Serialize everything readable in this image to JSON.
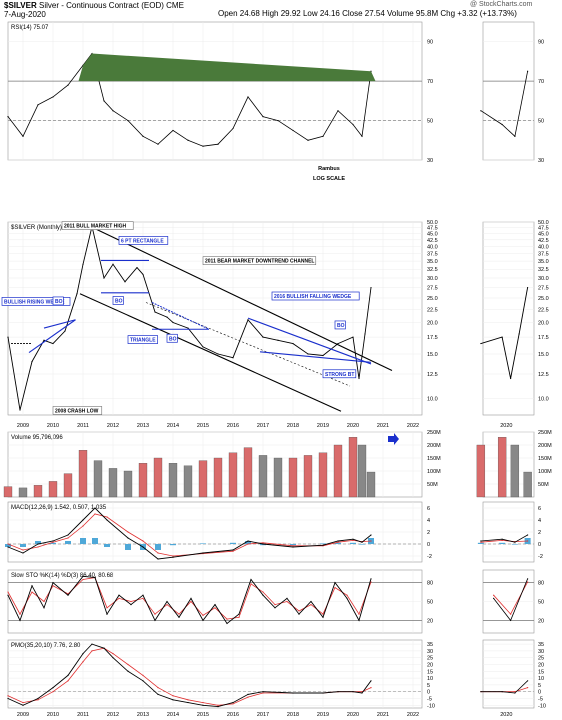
{
  "header": {
    "symbol": "$SILVER",
    "name": "Silver - Continuous Contract (EOD) CME",
    "date": "7-Aug-2020",
    "quote_line": "Open 24.68  High 29.92  Low 24.16  Close 27.54  Volume 95.8M  Chg +3.32 (+13.73%)",
    "watermark": "@ StockCharts.com"
  },
  "chart_data": [
    {
      "type": "line",
      "panel": "rsi",
      "label": "RSI(14) 75.07",
      "yticks": [
        30,
        50,
        70,
        90
      ],
      "ylim": [
        30,
        100
      ],
      "reference_lines": [
        70,
        50
      ],
      "x": [
        2008.5,
        2009.0,
        2009.5,
        2010.0,
        2010.5,
        2011.0,
        2011.3,
        2011.7,
        2012.0,
        2012.5,
        2013.0,
        2013.5,
        2014.0,
        2014.5,
        2015.0,
        2015.5,
        2016.0,
        2016.5,
        2017.0,
        2017.5,
        2018.0,
        2018.5,
        2019.0,
        2019.5,
        2020.0,
        2020.3,
        2020.6
      ],
      "values": [
        52,
        42,
        58,
        62,
        68,
        78,
        84,
        60,
        55,
        50,
        42,
        38,
        45,
        40,
        37,
        38,
        46,
        62,
        52,
        50,
        45,
        40,
        42,
        55,
        48,
        42,
        75
      ]
    },
    {
      "type": "line",
      "panel": "price",
      "label": "$SILVER (Monthly) 27.54",
      "scale": "log",
      "yticks": [
        10.0,
        12.5,
        15.0,
        17.5,
        20.0,
        22.5,
        25.0,
        27.5,
        30.0,
        32.5,
        35.0,
        37.5,
        40.0,
        42.5,
        45.0,
        47.5,
        50.0
      ],
      "ylim": [
        8.6,
        50
      ],
      "x": [
        2008.5,
        2008.9,
        2009.3,
        2009.7,
        2010.0,
        2010.4,
        2010.8,
        2011.0,
        2011.3,
        2011.7,
        2012.0,
        2012.4,
        2012.8,
        2013.0,
        2013.4,
        2013.8,
        2014.0,
        2014.5,
        2015.0,
        2015.5,
        2016.0,
        2016.5,
        2017.0,
        2017.5,
        2018.0,
        2018.5,
        2019.0,
        2019.5,
        2020.0,
        2020.2,
        2020.4,
        2020.6
      ],
      "values": [
        17.5,
        9.0,
        14.0,
        17.0,
        16.5,
        18.5,
        26.0,
        34.0,
        48.0,
        30.0,
        34.0,
        29.0,
        33.0,
        31.0,
        22.0,
        21.0,
        20.0,
        19.0,
        16.0,
        15.0,
        14.5,
        20.5,
        17.5,
        17.0,
        16.5,
        15.0,
        14.8,
        16.5,
        17.5,
        12.0,
        18.0,
        27.5
      ],
      "annotations": [
        "2011 BULL MARKET HIGH",
        "6 PT RECTANGLE",
        "2011 BEAR MARKET DOWNTREND CHANNEL",
        "BULLISH RISING WEDGE",
        "BO",
        "BO",
        "BO",
        "BO",
        "TRIANGLE",
        "2016 BULLISH FALLING WEDGE",
        "STRONG BT",
        "2008 CRASH LOW",
        "Rambus",
        "LOG SCALE"
      ]
    },
    {
      "type": "bar",
      "panel": "volume",
      "label": "Volume 95,796,096",
      "yticks": [
        "50M",
        "100M",
        "150M",
        "200M",
        "250M"
      ],
      "ylim": [
        0,
        250
      ],
      "x": [
        2008.5,
        2009.0,
        2009.5,
        2010.0,
        2010.5,
        2011.0,
        2011.5,
        2012.0,
        2012.5,
        2013.0,
        2013.5,
        2014.0,
        2014.5,
        2015.0,
        2015.5,
        2016.0,
        2016.5,
        2017.0,
        2017.5,
        2018.0,
        2018.5,
        2019.0,
        2019.5,
        2020.0,
        2020.3,
        2020.6
      ],
      "values": [
        40,
        35,
        45,
        60,
        90,
        180,
        140,
        110,
        100,
        130,
        150,
        130,
        120,
        140,
        150,
        170,
        190,
        160,
        150,
        150,
        160,
        170,
        200,
        230,
        200,
        96
      ]
    },
    {
      "type": "line",
      "panel": "macd",
      "label": "MACD(12,26,9) 1.542, 0.507, 1.035",
      "yticks": [
        -2,
        0,
        2,
        4,
        6
      ],
      "ylim": [
        -3,
        7
      ],
      "series": [
        {
          "name": "MACD",
          "x": [
            2008.5,
            2009.0,
            2009.5,
            2010.0,
            2010.5,
            2011.0,
            2011.4,
            2011.8,
            2012.5,
            2013.0,
            2013.5,
            2014.0,
            2015.0,
            2016.0,
            2016.5,
            2017.0,
            2018.0,
            2019.0,
            2019.5,
            2020.0,
            2020.3,
            2020.6
          ],
          "values": [
            -0.5,
            -1.5,
            0.0,
            0.5,
            1.5,
            4.0,
            6.0,
            4.0,
            1.0,
            -0.5,
            -2.5,
            -2.2,
            -1.5,
            -1.0,
            0.5,
            0.0,
            -0.5,
            -0.2,
            0.5,
            0.8,
            0.3,
            1.5
          ]
        },
        {
          "name": "Signal",
          "x": [
            2008.5,
            2009.0,
            2009.5,
            2010.0,
            2010.5,
            2011.0,
            2011.4,
            2011.8,
            2012.5,
            2013.0,
            2013.5,
            2014.0,
            2015.0,
            2016.0,
            2016.5,
            2017.0,
            2018.0,
            2019.0,
            2019.5,
            2020.0,
            2020.3,
            2020.6
          ],
          "values": [
            0.0,
            -1.0,
            -0.5,
            0.3,
            1.0,
            3.0,
            5.0,
            4.5,
            2.0,
            0.5,
            -1.5,
            -2.0,
            -1.6,
            -1.2,
            0.0,
            0.2,
            -0.3,
            -0.3,
            0.3,
            0.6,
            0.4,
            0.5
          ]
        }
      ]
    },
    {
      "type": "line",
      "panel": "sto",
      "label": "Slow STO %K(14) %D(3) 86.40, 80.68",
      "yticks": [
        20,
        50,
        80
      ],
      "ylim": [
        0,
        100
      ],
      "series": [
        {
          "name": "%K",
          "x": [
            2008.5,
            2008.9,
            2009.3,
            2009.7,
            2010.0,
            2010.5,
            2011.0,
            2011.4,
            2011.8,
            2012.2,
            2012.6,
            2013.0,
            2013.4,
            2013.8,
            2014.2,
            2014.6,
            2015.0,
            2015.4,
            2015.8,
            2016.2,
            2016.6,
            2017.0,
            2017.4,
            2017.8,
            2018.2,
            2018.6,
            2019.0,
            2019.4,
            2019.8,
            2020.2,
            2020.6
          ],
          "values": [
            60,
            20,
            75,
            40,
            80,
            60,
            90,
            88,
            30,
            60,
            45,
            60,
            20,
            50,
            25,
            55,
            20,
            45,
            15,
            30,
            85,
            60,
            40,
            55,
            30,
            50,
            25,
            80,
            55,
            20,
            86
          ]
        },
        {
          "name": "%D",
          "x": [
            2008.5,
            2008.9,
            2009.3,
            2009.7,
            2010.0,
            2010.5,
            2011.0,
            2011.4,
            2011.8,
            2012.2,
            2012.6,
            2013.0,
            2013.4,
            2013.8,
            2014.2,
            2014.6,
            2015.0,
            2015.4,
            2015.8,
            2016.2,
            2016.6,
            2017.0,
            2017.4,
            2017.8,
            2018.2,
            2018.6,
            2019.0,
            2019.4,
            2019.8,
            2020.2,
            2020.6
          ],
          "values": [
            65,
            30,
            65,
            50,
            75,
            62,
            85,
            88,
            40,
            55,
            50,
            55,
            30,
            45,
            30,
            50,
            28,
            40,
            22,
            25,
            78,
            65,
            45,
            50,
            35,
            45,
            30,
            72,
            60,
            30,
            81
          ]
        }
      ]
    },
    {
      "type": "line",
      "panel": "pmo",
      "label": "PMO(35,20,10) 7.76, 2.80",
      "yticks": [
        -10,
        -5,
        0,
        5,
        10,
        15,
        20,
        25,
        30,
        35
      ],
      "ylim": [
        -12,
        38
      ],
      "series": [
        {
          "name": "PMO",
          "x": [
            2008.5,
            2009.0,
            2009.5,
            2010.0,
            2010.5,
            2011.0,
            2011.3,
            2011.7,
            2012.0,
            2012.5,
            2013.0,
            2013.5,
            2014.0,
            2014.5,
            2015.0,
            2015.5,
            2016.0,
            2016.5,
            2017.0,
            2018.0,
            2019.0,
            2019.5,
            2020.0,
            2020.3,
            2020.6
          ],
          "values": [
            -5,
            -10,
            -5,
            3,
            12,
            28,
            35,
            32,
            25,
            15,
            8,
            -2,
            -6,
            -8,
            -10,
            -11,
            -8,
            -2,
            0,
            -1,
            -1,
            0,
            0,
            -1,
            8
          ]
        },
        {
          "name": "Signal",
          "x": [
            2008.5,
            2009.0,
            2009.5,
            2010.0,
            2010.5,
            2011.0,
            2011.3,
            2011.7,
            2012.0,
            2012.5,
            2013.0,
            2013.5,
            2014.0,
            2014.5,
            2015.0,
            2015.5,
            2016.0,
            2016.5,
            2017.0,
            2018.0,
            2019.0,
            2019.5,
            2020.0,
            2020.3,
            2020.6
          ],
          "values": [
            -3,
            -8,
            -6,
            0,
            8,
            22,
            30,
            32,
            28,
            20,
            12,
            3,
            -3,
            -6,
            -8,
            -10,
            -9,
            -4,
            -1,
            -1,
            -1,
            0,
            0,
            0,
            3
          ]
        }
      ]
    }
  ],
  "x_axis": {
    "ticks": [
      "2009",
      "2010",
      "2011",
      "2012",
      "2013",
      "2014",
      "2015",
      "2016",
      "2017",
      "2018",
      "2019",
      "2020",
      "2021",
      "2022"
    ],
    "tick_values": [
      2009,
      2010,
      2011,
      2012,
      2013,
      2014,
      2015,
      2016,
      2017,
      2018,
      2019,
      2020,
      2021,
      2022
    ],
    "right_inset_tick": "2020"
  },
  "colors": {
    "price": "#000000",
    "volume_up": "#d96b6b",
    "volume_down": "#888888",
    "macd_hist": "#4fa8d8",
    "signal": "#e03030",
    "annotation_blue": "#1a2fcc",
    "rsi_fill": "#4a7a3a"
  }
}
